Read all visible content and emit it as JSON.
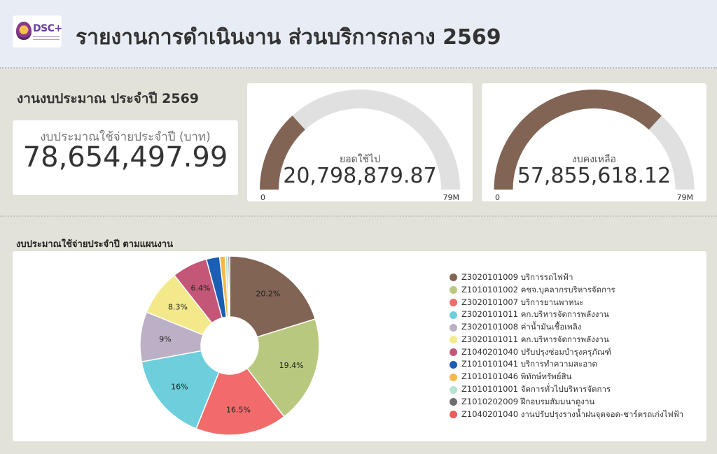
{
  "header": {
    "logo_text": "DSC+",
    "title": "รายงานการดำเนินงาน ส่วนบริการกลาง 2569"
  },
  "budget": {
    "heading": "งานงบประมาณ ประจำปี 2569",
    "kpi_label": "งบประมาณใช้จ่ายประจำปี (บาท)",
    "kpi_value": "78,654,497.99"
  },
  "gauges": [
    {
      "label": "ยอดใช้ไป",
      "value_text": "20,798,879.87",
      "value": 20798879.87,
      "max": 78654497.99,
      "min_label": "0",
      "max_label": "79M",
      "fill_color": "#826455"
    },
    {
      "label": "งบคงเหลือ",
      "value_text": "57,855,618.12",
      "value": 57855618.12,
      "max": 78654497.99,
      "min_label": "0",
      "max_label": "79M",
      "fill_color": "#826455"
    }
  ],
  "pie_section_title": "งบประมาณใช้จ่ายประจำปี ตามแผนงาน",
  "chart_data": {
    "type": "pie",
    "donut": true,
    "legend_position": "right",
    "categories": [
      "Z3020101009 บริการรถไฟฟ้า",
      "Z1010101002 คชจ.บุคลากรบริหารจัดการ",
      "Z3020101007 บริการยานพาหนะ",
      "Z3020101011 คก.บริหารจัดการพลังงาน",
      "Z3020101008 ค่าน้ำมันเชื้อเพลิง",
      "Z3020101011 คก.บริหารจัดการพลังงาน",
      "Z1040201040 ปรับปรุงซ่อมบำรุงครุภัณฑ์",
      "Z1010101041 บริการทำความสะอาด",
      "Z1010101046 พิทักษ์ทรัพย์สิน",
      "Z1010101001 จัดการทั่วไปบริหารจัดการ",
      "Z1010202009 ฝึกอบรมสัมมนาดูงาน",
      "Z1040201040 งานปรับปรุงรางน้ำฝนจุดจอด-ชาร์ตรถเก่งไฟฟ้า"
    ],
    "values": [
      20.2,
      19.4,
      16.5,
      16.0,
      9.0,
      8.3,
      6.4,
      2.4,
      1.0,
      0.5,
      0.3,
      0.0
    ],
    "labels": [
      "20.2%",
      "19.4%",
      "16.5%",
      "16%",
      "9%",
      "8.3%",
      "6.4%",
      "",
      "",
      "",
      "",
      ""
    ],
    "colors": [
      "#826455",
      "#b8c97f",
      "#f26b6b",
      "#6ccfdb",
      "#bcb0c7",
      "#f3e98a",
      "#c45678",
      "#1a5fb4",
      "#f7b84a",
      "#b5e3cf",
      "#6e6e6e",
      "#ef5b5b"
    ]
  }
}
